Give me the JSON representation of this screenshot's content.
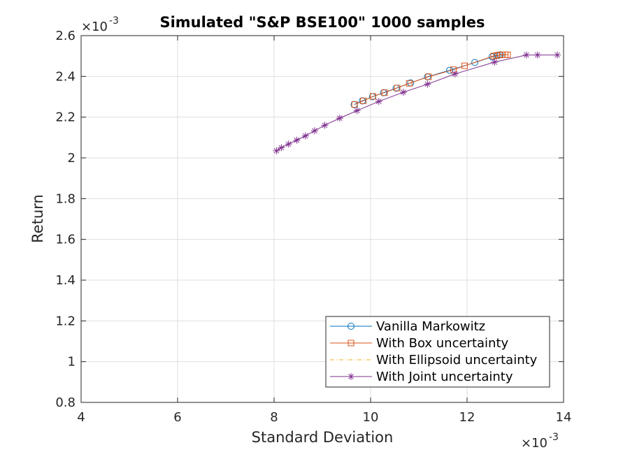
{
  "chart_data": {
    "type": "line",
    "title": "Simulated \"S&P BSE100\" 1000 samples",
    "xlabel": "Standard Deviation",
    "ylabel": "Return",
    "x_multiplier": "×10",
    "x_exponent": "-3",
    "y_multiplier": "×10",
    "y_exponent": "-3",
    "xlim": [
      4,
      14
    ],
    "ylim": [
      0.8,
      2.6
    ],
    "xticks": [
      4,
      6,
      8,
      10,
      12,
      14
    ],
    "yticks": [
      0.8,
      1,
      1.2,
      1.4,
      1.6,
      1.8,
      2,
      2.2,
      2.4,
      2.6
    ],
    "grid": true,
    "legend_position": "bottom-right",
    "series": [
      {
        "name": "Vanilla Markowitz",
        "color": "#0072BD",
        "marker": "circle",
        "x": [
          9.66,
          9.83,
          10.04,
          10.27,
          10.53,
          10.83,
          11.18,
          11.64,
          12.16,
          12.52,
          12.64,
          12.69
        ],
        "y": [
          2.262,
          2.28,
          2.3,
          2.32,
          2.342,
          2.368,
          2.398,
          2.43,
          2.468,
          2.496,
          2.503,
          2.506
        ]
      },
      {
        "name": "With Box uncertainty",
        "color": "#D95319",
        "marker": "square",
        "x": [
          9.67,
          9.85,
          10.05,
          10.29,
          10.55,
          10.8,
          11.2,
          11.72,
          11.95,
          12.55,
          12.61,
          12.67,
          12.73,
          12.79,
          12.84
        ],
        "y": [
          2.262,
          2.28,
          2.302,
          2.32,
          2.343,
          2.366,
          2.398,
          2.433,
          2.452,
          2.5,
          2.503,
          2.505,
          2.506,
          2.506,
          2.506
        ]
      },
      {
        "name": "With Ellipsoid uncertainty",
        "color": "#EDB120",
        "marker": "none",
        "x": [],
        "y": []
      },
      {
        "name": "With Joint uncertainty",
        "color": "#7E2F8E",
        "marker": "asterisk",
        "x": [
          8.05,
          8.15,
          8.3,
          8.47,
          8.65,
          8.84,
          9.05,
          9.36,
          9.72,
          10.17,
          10.68,
          11.18,
          11.75,
          12.57,
          13.23,
          13.46,
          13.87
        ],
        "y": [
          2.035,
          2.05,
          2.068,
          2.087,
          2.108,
          2.133,
          2.16,
          2.195,
          2.232,
          2.277,
          2.322,
          2.362,
          2.412,
          2.47,
          2.505,
          2.505,
          2.505
        ]
      }
    ]
  }
}
